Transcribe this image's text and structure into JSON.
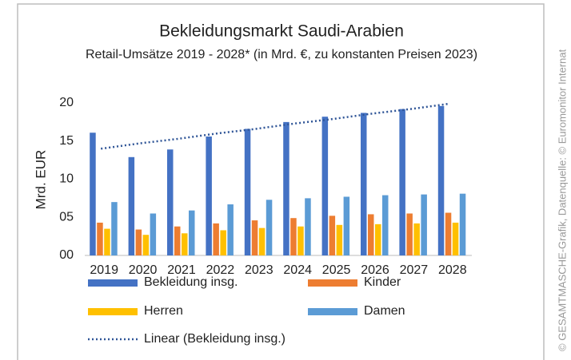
{
  "chart_data": {
    "type": "bar",
    "title": "Bekleidungsmarkt Saudi-Arabien",
    "subtitle": "Retail-Umsätze 2019 - 2028* (in Mrd. €, zu konstanten Preisen 2023)",
    "y_label": "Mrd. EUR",
    "source": "© GESAMTMASCHE-Grafik, Datenquelle: © Euromonitor Internat",
    "categories": [
      "2019",
      "2020",
      "2021",
      "2022",
      "2023",
      "2024",
      "2025",
      "2026",
      "2027",
      "2028"
    ],
    "series": [
      {
        "name": "Bekleidung insg.",
        "color": "#4472c4",
        "values": [
          16.1,
          12.9,
          13.9,
          15.6,
          16.6,
          17.5,
          18.2,
          18.7,
          19.2,
          19.6
        ]
      },
      {
        "name": "Kinder",
        "color": "#ed7d31",
        "values": [
          4.3,
          3.4,
          3.8,
          4.2,
          4.6,
          4.9,
          5.2,
          5.4,
          5.5,
          5.6
        ]
      },
      {
        "name": "Herren",
        "color": "#ffc000",
        "values": [
          3.5,
          2.7,
          2.9,
          3.3,
          3.6,
          3.8,
          4.0,
          4.1,
          4.2,
          4.3
        ]
      },
      {
        "name": "Damen",
        "color": "#5b9bd5",
        "values": [
          7.0,
          5.5,
          5.9,
          6.7,
          7.3,
          7.5,
          7.7,
          7.9,
          8.0,
          8.1
        ]
      }
    ],
    "trendline": {
      "name": "Linear (Bekleidung insg.)",
      "color": "#2f5597",
      "style": "dotted",
      "values": [
        14.0,
        14.7,
        15.3,
        16.0,
        16.6,
        17.3,
        17.9,
        18.6,
        19.2,
        19.9
      ]
    },
    "ylim": [
      0,
      20
    ],
    "yticks": [
      {
        "value": 0,
        "label": "00"
      },
      {
        "value": 5,
        "label": "05"
      },
      10,
      15,
      20
    ],
    "grid": false
  }
}
